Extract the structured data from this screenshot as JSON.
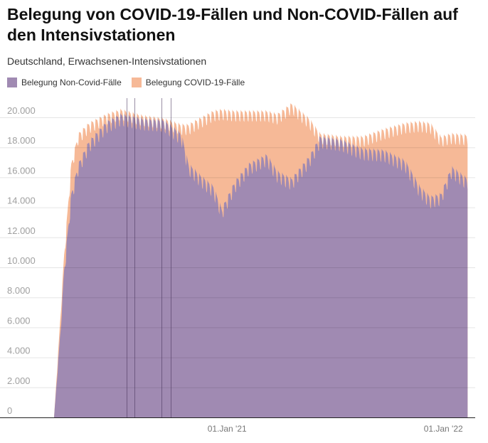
{
  "title": "Belegung von COVID-19-Fällen und Non-COVID-Fällen auf den Intensivstationen",
  "subtitle": "Deutschland, Erwachsenen-Intensivstationen",
  "chart_data": {
    "type": "area",
    "stacked": true,
    "title": "Belegung von COVID-19-Fällen und Non-COVID-Fällen auf den Intensivstationen",
    "subtitle": "Deutschland, Erwachsenen-Intensivstationen",
    "xlabel": "",
    "ylabel": "",
    "ylim": [
      0,
      20000
    ],
    "yticks": [
      0,
      2000,
      4000,
      6000,
      8000,
      10000,
      12000,
      14000,
      16000,
      18000,
      20000
    ],
    "ytick_labels": [
      "0",
      "2.000",
      "4.000",
      "6.000",
      "8.000",
      "10.000",
      "12.000",
      "14.000",
      "16.000",
      "18.000",
      "20.000"
    ],
    "xlim": [
      "2020-03-15",
      "2022-02-11"
    ],
    "xticks": [
      {
        "date": "2021-01-01",
        "label": "01.Jan '21"
      },
      {
        "date": "2022-01-01",
        "label": "01.Jan '22"
      }
    ],
    "grid": true,
    "legend_position": "top-left",
    "colors": {
      "noncovid": "#a08ab2",
      "covid": "#f6b997"
    },
    "weekly_variation": 900,
    "marker_dates": [
      "2020-07-15",
      "2020-07-29",
      "2020-09-12",
      "2020-09-28"
    ],
    "series": [
      {
        "name": "Belegung Non-Covid-Fälle",
        "key": "noncovid"
      },
      {
        "name": "Belegung COVID-19-Fälle",
        "key": "covid"
      }
    ],
    "x": [
      "2020-03-15",
      "2020-03-26",
      "2020-04-01",
      "2020-04-13",
      "2020-04-25",
      "2020-05-13",
      "2020-06-12",
      "2020-07-06",
      "2020-08-11",
      "2020-09-16",
      "2020-10-16",
      "2020-10-28",
      "2020-11-15",
      "2020-12-09",
      "2020-12-23",
      "2021-01-14",
      "2021-02-07",
      "2021-03-09",
      "2021-03-27",
      "2021-04-20",
      "2021-05-20",
      "2021-06-07",
      "2021-07-13",
      "2021-08-18",
      "2021-09-23",
      "2021-10-29",
      "2021-11-22",
      "2021-12-10",
      "2021-12-28",
      "2022-01-15",
      "2022-02-11"
    ],
    "noncovid": [
      0,
      6000,
      10000,
      15000,
      17000,
      18500,
      19800,
      20300,
      20000,
      19900,
      19000,
      17000,
      16300,
      15500,
      14000,
      15800,
      17000,
      17600,
      16500,
      16000,
      17500,
      18800,
      18600,
      18000,
      17900,
      17200,
      15500,
      14800,
      15000,
      16800,
      16000
    ],
    "covid": [
      0,
      1000,
      1000,
      2000,
      2000,
      1200,
      500,
      300,
      200,
      100,
      600,
      2600,
      3700,
      5000,
      6600,
      4700,
      3500,
      2900,
      3800,
      5000,
      2500,
      200,
      200,
      800,
      1400,
      2500,
      4300,
      4900,
      3800,
      2200,
      2900
    ]
  }
}
